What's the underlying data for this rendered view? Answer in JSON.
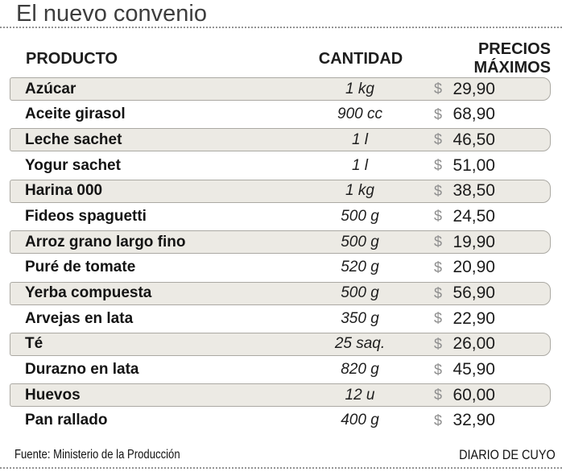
{
  "title": "El nuevo convenio",
  "table": {
    "headers": {
      "producto": "PRODUCTO",
      "cantidad": "CANTIDAD",
      "precio": "PRECIOS MÁXIMOS"
    },
    "currency": "$",
    "rows": [
      {
        "producto": "Azúcar",
        "cantidad": "1 kg",
        "precio": "29,90"
      },
      {
        "producto": "Aceite girasol",
        "cantidad": "900 cc",
        "precio": "68,90"
      },
      {
        "producto": "Leche sachet",
        "cantidad": "1 l",
        "precio": "46,50"
      },
      {
        "producto": "Yogur sachet",
        "cantidad": "1 l",
        "precio": "51,00"
      },
      {
        "producto": "Harina 000",
        "cantidad": "1 kg",
        "precio": "38,50"
      },
      {
        "producto": "Fideos spaguetti",
        "cantidad": "500 g",
        "precio": "24,50"
      },
      {
        "producto": "Arroz grano largo fino",
        "cantidad": "500 g",
        "precio": "19,90"
      },
      {
        "producto": "Puré de tomate",
        "cantidad": "520 g",
        "precio": "20,90"
      },
      {
        "producto": "Yerba compuesta",
        "cantidad": "500 g",
        "precio": "56,90"
      },
      {
        "producto": "Arvejas en lata",
        "cantidad": "350 g",
        "precio": "22,90"
      },
      {
        "producto": "Té",
        "cantidad": "25 saq.",
        "precio": "26,00"
      },
      {
        "producto": "Durazno en lata",
        "cantidad": "820 g",
        "precio": "45,90"
      },
      {
        "producto": "Huevos",
        "cantidad": "12 u",
        "precio": "60,00"
      },
      {
        "producto": "Pan rallado",
        "cantidad": "400 g",
        "precio": "32,90"
      }
    ]
  },
  "footer": {
    "source": "Fuente: Ministerio de la Producción",
    "credit": "DIARIO DE CUYO"
  },
  "colors": {
    "row_shade": "#eceae4",
    "row_border": "#aba9a3",
    "currency_symbol": "#8e8e8e",
    "title_text": "#3d3d3d",
    "dotted_rule": "#949494"
  },
  "chart_data": {
    "type": "table",
    "title": "El nuevo convenio",
    "columns": [
      "PRODUCTO",
      "CANTIDAD",
      "PRECIOS MÁXIMOS"
    ],
    "rows": [
      [
        "Azúcar",
        "1 kg",
        "$ 29,90"
      ],
      [
        "Aceite girasol",
        "900 cc",
        "$ 68,90"
      ],
      [
        "Leche sachet",
        "1 l",
        "$ 46,50"
      ],
      [
        "Yogur sachet",
        "1 l",
        "$ 51,00"
      ],
      [
        "Harina 000",
        "1 kg",
        "$ 38,50"
      ],
      [
        "Fideos spaguetti",
        "500 g",
        "$ 24,50"
      ],
      [
        "Arroz grano largo fino",
        "500 g",
        "$ 19,90"
      ],
      [
        "Puré de tomate",
        "520 g",
        "$ 20,90"
      ],
      [
        "Yerba compuesta",
        "500 g",
        "$ 56,90"
      ],
      [
        "Arvejas en lata",
        "350 g",
        "$ 22,90"
      ],
      [
        "Té",
        "25 saq.",
        "$ 26,00"
      ],
      [
        "Durazno en lata",
        "820 g",
        "$ 45,90"
      ],
      [
        "Huevos",
        "12 u",
        "$ 60,00"
      ],
      [
        "Pan rallado",
        "400 g",
        "$ 32,90"
      ]
    ],
    "prices_numeric": [
      29.9,
      68.9,
      46.5,
      51.0,
      38.5,
      24.5,
      19.9,
      20.9,
      56.9,
      22.9,
      26.0,
      45.9,
      60.0,
      32.9
    ],
    "currency": "ARS $",
    "source": "Fuente: Ministerio de la Producción",
    "credit": "DIARIO DE CUYO",
    "layout": {
      "striped": "odd-rows-shaded",
      "grid": false
    }
  }
}
